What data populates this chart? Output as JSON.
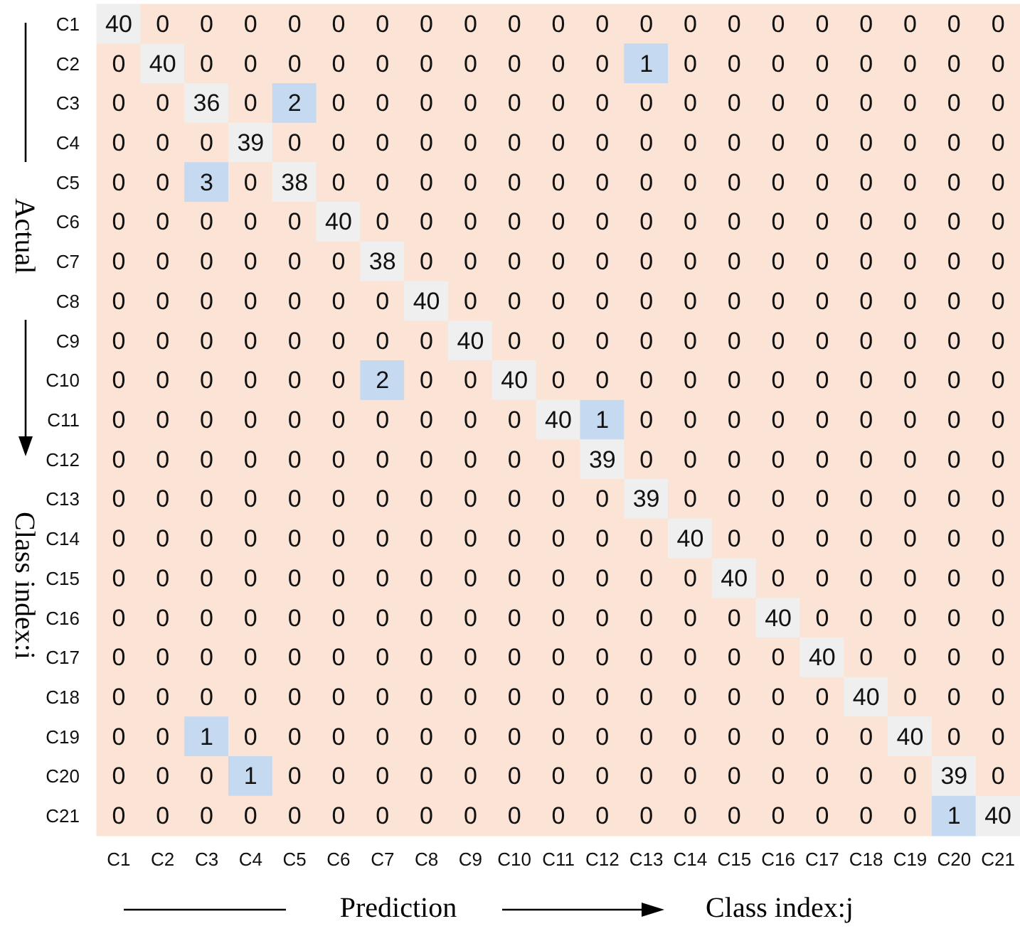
{
  "chart_data": {
    "type": "heatmap",
    "xlabel": "Prediction",
    "ylabel": "Actual",
    "annotations": [
      "Class index:i",
      "Class index:j"
    ],
    "data_labels": true,
    "categories": [
      "C1",
      "C2",
      "C3",
      "C4",
      "C5",
      "C6",
      "C7",
      "C8",
      "C9",
      "C10",
      "C11",
      "C12",
      "C13",
      "C14",
      "C15",
      "C16",
      "C17",
      "C18",
      "C19",
      "C20",
      "C21"
    ],
    "y_categories": [
      "C1",
      "C2",
      "C3",
      "C4",
      "C5",
      "C6",
      "C7",
      "C8",
      "C9",
      "C10",
      "C11",
      "C12",
      "C13",
      "C14",
      "C15",
      "C16",
      "C17",
      "C18",
      "C19",
      "C20",
      "C21"
    ],
    "cells": [
      [
        40,
        0,
        0,
        0,
        0,
        0,
        0,
        0,
        0,
        0,
        0,
        0,
        0,
        0,
        0,
        0,
        0,
        0,
        0,
        0,
        0
      ],
      [
        0,
        40,
        0,
        0,
        0,
        0,
        0,
        0,
        0,
        0,
        0,
        0,
        1,
        0,
        0,
        0,
        0,
        0,
        0,
        0,
        0
      ],
      [
        0,
        0,
        36,
        0,
        2,
        0,
        0,
        0,
        0,
        0,
        0,
        0,
        0,
        0,
        0,
        0,
        0,
        0,
        0,
        0,
        0
      ],
      [
        0,
        0,
        0,
        39,
        0,
        0,
        0,
        0,
        0,
        0,
        0,
        0,
        0,
        0,
        0,
        0,
        0,
        0,
        0,
        0,
        0
      ],
      [
        0,
        0,
        3,
        0,
        38,
        0,
        0,
        0,
        0,
        0,
        0,
        0,
        0,
        0,
        0,
        0,
        0,
        0,
        0,
        0,
        0
      ],
      [
        0,
        0,
        0,
        0,
        0,
        40,
        0,
        0,
        0,
        0,
        0,
        0,
        0,
        0,
        0,
        0,
        0,
        0,
        0,
        0,
        0
      ],
      [
        0,
        0,
        0,
        0,
        0,
        0,
        38,
        0,
        0,
        0,
        0,
        0,
        0,
        0,
        0,
        0,
        0,
        0,
        0,
        0,
        0
      ],
      [
        0,
        0,
        0,
        0,
        0,
        0,
        0,
        40,
        0,
        0,
        0,
        0,
        0,
        0,
        0,
        0,
        0,
        0,
        0,
        0,
        0
      ],
      [
        0,
        0,
        0,
        0,
        0,
        0,
        0,
        0,
        40,
        0,
        0,
        0,
        0,
        0,
        0,
        0,
        0,
        0,
        0,
        0,
        0
      ],
      [
        0,
        0,
        0,
        0,
        0,
        0,
        2,
        0,
        0,
        40,
        0,
        0,
        0,
        0,
        0,
        0,
        0,
        0,
        0,
        0,
        0
      ],
      [
        0,
        0,
        0,
        0,
        0,
        0,
        0,
        0,
        0,
        0,
        40,
        1,
        0,
        0,
        0,
        0,
        0,
        0,
        0,
        0,
        0
      ],
      [
        0,
        0,
        0,
        0,
        0,
        0,
        0,
        0,
        0,
        0,
        0,
        39,
        0,
        0,
        0,
        0,
        0,
        0,
        0,
        0,
        0
      ],
      [
        0,
        0,
        0,
        0,
        0,
        0,
        0,
        0,
        0,
        0,
        0,
        0,
        39,
        0,
        0,
        0,
        0,
        0,
        0,
        0,
        0
      ],
      [
        0,
        0,
        0,
        0,
        0,
        0,
        0,
        0,
        0,
        0,
        0,
        0,
        0,
        40,
        0,
        0,
        0,
        0,
        0,
        0,
        0
      ],
      [
        0,
        0,
        0,
        0,
        0,
        0,
        0,
        0,
        0,
        0,
        0,
        0,
        0,
        0,
        40,
        0,
        0,
        0,
        0,
        0,
        0
      ],
      [
        0,
        0,
        0,
        0,
        0,
        0,
        0,
        0,
        0,
        0,
        0,
        0,
        0,
        0,
        0,
        40,
        0,
        0,
        0,
        0,
        0
      ],
      [
        0,
        0,
        0,
        0,
        0,
        0,
        0,
        0,
        0,
        0,
        0,
        0,
        0,
        0,
        0,
        0,
        40,
        0,
        0,
        0,
        0
      ],
      [
        0,
        0,
        0,
        0,
        0,
        0,
        0,
        0,
        0,
        0,
        0,
        0,
        0,
        0,
        0,
        0,
        0,
        40,
        0,
        0,
        0
      ],
      [
        0,
        0,
        1,
        0,
        0,
        0,
        0,
        0,
        0,
        0,
        0,
        0,
        0,
        0,
        0,
        0,
        0,
        0,
        40,
        0,
        0
      ],
      [
        0,
        0,
        0,
        1,
        0,
        0,
        0,
        0,
        0,
        0,
        0,
        0,
        0,
        0,
        0,
        0,
        0,
        0,
        0,
        39,
        0
      ],
      [
        0,
        0,
        0,
        0,
        0,
        0,
        0,
        0,
        0,
        0,
        0,
        0,
        0,
        0,
        0,
        0,
        0,
        0,
        0,
        1,
        40
      ]
    ],
    "colors": [
      [
        "#efefef",
        "#fbe4d5",
        "#fbe4d5",
        "#fbe4d5",
        "#fbe4d5",
        "#fbe4d5",
        "#fbe4d5",
        "#fbe4d5",
        "#fbe4d5",
        "#fbe4d5",
        "#fbe4d5",
        "#fbe4d5",
        "#fbe4d5",
        "#fbe4d5",
        "#fbe4d5",
        "#fbe4d5",
        "#fbe4d5",
        "#fbe4d5",
        "#fbe4d5",
        "#fbe4d5",
        "#fbe4d5"
      ],
      [
        "#fbe4d5",
        "#efefef",
        "#fbe4d5",
        "#fbe4d5",
        "#fbe4d5",
        "#fbe4d5",
        "#fbe4d5",
        "#fbe4d5",
        "#fbe4d5",
        "#fbe4d5",
        "#fbe4d5",
        "#fbe4d5",
        "#c5d9f1",
        "#fbe4d5",
        "#fbe4d5",
        "#fbe4d5",
        "#fbe4d5",
        "#fbe4d5",
        "#fbe4d5",
        "#fbe4d5",
        "#fbe4d5"
      ],
      [
        "#fbe4d5",
        "#fbe4d5",
        "#efefef",
        "#fbe4d5",
        "#c5d9f1",
        "#fbe4d5",
        "#fbe4d5",
        "#fbe4d5",
        "#fbe4d5",
        "#fbe4d5",
        "#fbe4d5",
        "#fbe4d5",
        "#fbe4d5",
        "#fbe4d5",
        "#fbe4d5",
        "#fbe4d5",
        "#fbe4d5",
        "#fbe4d5",
        "#fbe4d5",
        "#fbe4d5",
        "#fbe4d5"
      ],
      [
        "#fbe4d5",
        "#fbe4d5",
        "#fbe4d5",
        "#efefef",
        "#fbe4d5",
        "#fbe4d5",
        "#fbe4d5",
        "#fbe4d5",
        "#fbe4d5",
        "#fbe4d5",
        "#fbe4d5",
        "#fbe4d5",
        "#fbe4d5",
        "#fbe4d5",
        "#fbe4d5",
        "#fbe4d5",
        "#fbe4d5",
        "#fbe4d5",
        "#fbe4d5",
        "#fbe4d5",
        "#fbe4d5"
      ],
      [
        "#fbe4d5",
        "#fbe4d5",
        "#c5d9f1",
        "#fbe4d5",
        "#efefef",
        "#fbe4d5",
        "#fbe4d5",
        "#fbe4d5",
        "#fbe4d5",
        "#fbe4d5",
        "#fbe4d5",
        "#fbe4d5",
        "#fbe4d5",
        "#fbe4d5",
        "#fbe4d5",
        "#fbe4d5",
        "#fbe4d5",
        "#fbe4d5",
        "#fbe4d5",
        "#fbe4d5",
        "#fbe4d5"
      ],
      [
        "#fbe4d5",
        "#fbe4d5",
        "#fbe4d5",
        "#fbe4d5",
        "#fbe4d5",
        "#efefef",
        "#fbe4d5",
        "#fbe4d5",
        "#fbe4d5",
        "#fbe4d5",
        "#fbe4d5",
        "#fbe4d5",
        "#fbe4d5",
        "#fbe4d5",
        "#fbe4d5",
        "#fbe4d5",
        "#fbe4d5",
        "#fbe4d5",
        "#fbe4d5",
        "#fbe4d5",
        "#fbe4d5"
      ],
      [
        "#fbe4d5",
        "#fbe4d5",
        "#fbe4d5",
        "#fbe4d5",
        "#fbe4d5",
        "#fbe4d5",
        "#efefef",
        "#fbe4d5",
        "#fbe4d5",
        "#fbe4d5",
        "#fbe4d5",
        "#fbe4d5",
        "#fbe4d5",
        "#fbe4d5",
        "#fbe4d5",
        "#fbe4d5",
        "#fbe4d5",
        "#fbe4d5",
        "#fbe4d5",
        "#fbe4d5",
        "#fbe4d5"
      ],
      [
        "#fbe4d5",
        "#fbe4d5",
        "#fbe4d5",
        "#fbe4d5",
        "#fbe4d5",
        "#fbe4d5",
        "#fbe4d5",
        "#efefef",
        "#fbe4d5",
        "#fbe4d5",
        "#fbe4d5",
        "#fbe4d5",
        "#fbe4d5",
        "#fbe4d5",
        "#fbe4d5",
        "#fbe4d5",
        "#fbe4d5",
        "#fbe4d5",
        "#fbe4d5",
        "#fbe4d5",
        "#fbe4d5"
      ],
      [
        "#fbe4d5",
        "#fbe4d5",
        "#fbe4d5",
        "#fbe4d5",
        "#fbe4d5",
        "#fbe4d5",
        "#fbe4d5",
        "#fbe4d5",
        "#efefef",
        "#fbe4d5",
        "#fbe4d5",
        "#fbe4d5",
        "#fbe4d5",
        "#fbe4d5",
        "#fbe4d5",
        "#fbe4d5",
        "#fbe4d5",
        "#fbe4d5",
        "#fbe4d5",
        "#fbe4d5",
        "#fbe4d5"
      ],
      [
        "#fbe4d5",
        "#fbe4d5",
        "#fbe4d5",
        "#fbe4d5",
        "#fbe4d5",
        "#fbe4d5",
        "#c5d9f1",
        "#fbe4d5",
        "#fbe4d5",
        "#efefef",
        "#fbe4d5",
        "#fbe4d5",
        "#fbe4d5",
        "#fbe4d5",
        "#fbe4d5",
        "#fbe4d5",
        "#fbe4d5",
        "#fbe4d5",
        "#fbe4d5",
        "#fbe4d5",
        "#fbe4d5"
      ],
      [
        "#fbe4d5",
        "#fbe4d5",
        "#fbe4d5",
        "#fbe4d5",
        "#fbe4d5",
        "#fbe4d5",
        "#fbe4d5",
        "#fbe4d5",
        "#fbe4d5",
        "#fbe4d5",
        "#efefef",
        "#c5d9f1",
        "#fbe4d5",
        "#fbe4d5",
        "#fbe4d5",
        "#fbe4d5",
        "#fbe4d5",
        "#fbe4d5",
        "#fbe4d5",
        "#fbe4d5",
        "#fbe4d5"
      ],
      [
        "#fbe4d5",
        "#fbe4d5",
        "#fbe4d5",
        "#fbe4d5",
        "#fbe4d5",
        "#fbe4d5",
        "#fbe4d5",
        "#fbe4d5",
        "#fbe4d5",
        "#fbe4d5",
        "#fbe4d5",
        "#efefef",
        "#fbe4d5",
        "#fbe4d5",
        "#fbe4d5",
        "#fbe4d5",
        "#fbe4d5",
        "#fbe4d5",
        "#fbe4d5",
        "#fbe4d5",
        "#fbe4d5"
      ],
      [
        "#fbe4d5",
        "#fbe4d5",
        "#fbe4d5",
        "#fbe4d5",
        "#fbe4d5",
        "#fbe4d5",
        "#fbe4d5",
        "#fbe4d5",
        "#fbe4d5",
        "#fbe4d5",
        "#fbe4d5",
        "#fbe4d5",
        "#efefef",
        "#fbe4d5",
        "#fbe4d5",
        "#fbe4d5",
        "#fbe4d5",
        "#fbe4d5",
        "#fbe4d5",
        "#fbe4d5",
        "#fbe4d5"
      ],
      [
        "#fbe4d5",
        "#fbe4d5",
        "#fbe4d5",
        "#fbe4d5",
        "#fbe4d5",
        "#fbe4d5",
        "#fbe4d5",
        "#fbe4d5",
        "#fbe4d5",
        "#fbe4d5",
        "#fbe4d5",
        "#fbe4d5",
        "#fbe4d5",
        "#efefef",
        "#fbe4d5",
        "#fbe4d5",
        "#fbe4d5",
        "#fbe4d5",
        "#fbe4d5",
        "#fbe4d5",
        "#fbe4d5"
      ],
      [
        "#fbe4d5",
        "#fbe4d5",
        "#fbe4d5",
        "#fbe4d5",
        "#fbe4d5",
        "#fbe4d5",
        "#fbe4d5",
        "#fbe4d5",
        "#fbe4d5",
        "#fbe4d5",
        "#fbe4d5",
        "#fbe4d5",
        "#fbe4d5",
        "#fbe4d5",
        "#efefef",
        "#fbe4d5",
        "#fbe4d5",
        "#fbe4d5",
        "#fbe4d5",
        "#fbe4d5",
        "#fbe4d5"
      ],
      [
        "#fbe4d5",
        "#fbe4d5",
        "#fbe4d5",
        "#fbe4d5",
        "#fbe4d5",
        "#fbe4d5",
        "#fbe4d5",
        "#fbe4d5",
        "#fbe4d5",
        "#fbe4d5",
        "#fbe4d5",
        "#fbe4d5",
        "#fbe4d5",
        "#fbe4d5",
        "#fbe4d5",
        "#efefef",
        "#fbe4d5",
        "#fbe4d5",
        "#fbe4d5",
        "#fbe4d5",
        "#fbe4d5"
      ],
      [
        "#fbe4d5",
        "#fbe4d5",
        "#fbe4d5",
        "#fbe4d5",
        "#fbe4d5",
        "#fbe4d5",
        "#fbe4d5",
        "#fbe4d5",
        "#fbe4d5",
        "#fbe4d5",
        "#fbe4d5",
        "#fbe4d5",
        "#fbe4d5",
        "#fbe4d5",
        "#fbe4d5",
        "#fbe4d5",
        "#efefef",
        "#fbe4d5",
        "#fbe4d5",
        "#fbe4d5",
        "#fbe4d5"
      ],
      [
        "#fbe4d5",
        "#fbe4d5",
        "#fbe4d5",
        "#fbe4d5",
        "#fbe4d5",
        "#fbe4d5",
        "#fbe4d5",
        "#fbe4d5",
        "#fbe4d5",
        "#fbe4d5",
        "#fbe4d5",
        "#fbe4d5",
        "#fbe4d5",
        "#fbe4d5",
        "#fbe4d5",
        "#fbe4d5",
        "#fbe4d5",
        "#efefef",
        "#fbe4d5",
        "#fbe4d5",
        "#fbe4d5"
      ],
      [
        "#fbe4d5",
        "#fbe4d5",
        "#c5d9f1",
        "#fbe4d5",
        "#fbe4d5",
        "#fbe4d5",
        "#fbe4d5",
        "#fbe4d5",
        "#fbe4d5",
        "#fbe4d5",
        "#fbe4d5",
        "#fbe4d5",
        "#fbe4d5",
        "#fbe4d5",
        "#fbe4d5",
        "#fbe4d5",
        "#fbe4d5",
        "#fbe4d5",
        "#efefef",
        "#fbe4d5",
        "#fbe4d5"
      ],
      [
        "#fbe4d5",
        "#fbe4d5",
        "#fbe4d5",
        "#c5d9f1",
        "#fbe4d5",
        "#fbe4d5",
        "#fbe4d5",
        "#fbe4d5",
        "#fbe4d5",
        "#fbe4d5",
        "#fbe4d5",
        "#fbe4d5",
        "#fbe4d5",
        "#fbe4d5",
        "#fbe4d5",
        "#fbe4d5",
        "#fbe4d5",
        "#fbe4d5",
        "#fbe4d5",
        "#efefef",
        "#fbe4d5"
      ],
      [
        "#fbe4d5",
        "#fbe4d5",
        "#fbe4d5",
        "#fbe4d5",
        "#fbe4d5",
        "#fbe4d5",
        "#fbe4d5",
        "#fbe4d5",
        "#fbe4d5",
        "#fbe4d5",
        "#fbe4d5",
        "#fbe4d5",
        "#fbe4d5",
        "#fbe4d5",
        "#fbe4d5",
        "#fbe4d5",
        "#fbe4d5",
        "#fbe4d5",
        "#fbe4d5",
        "#c5d9f1",
        "#efefef"
      ]
    ]
  }
}
